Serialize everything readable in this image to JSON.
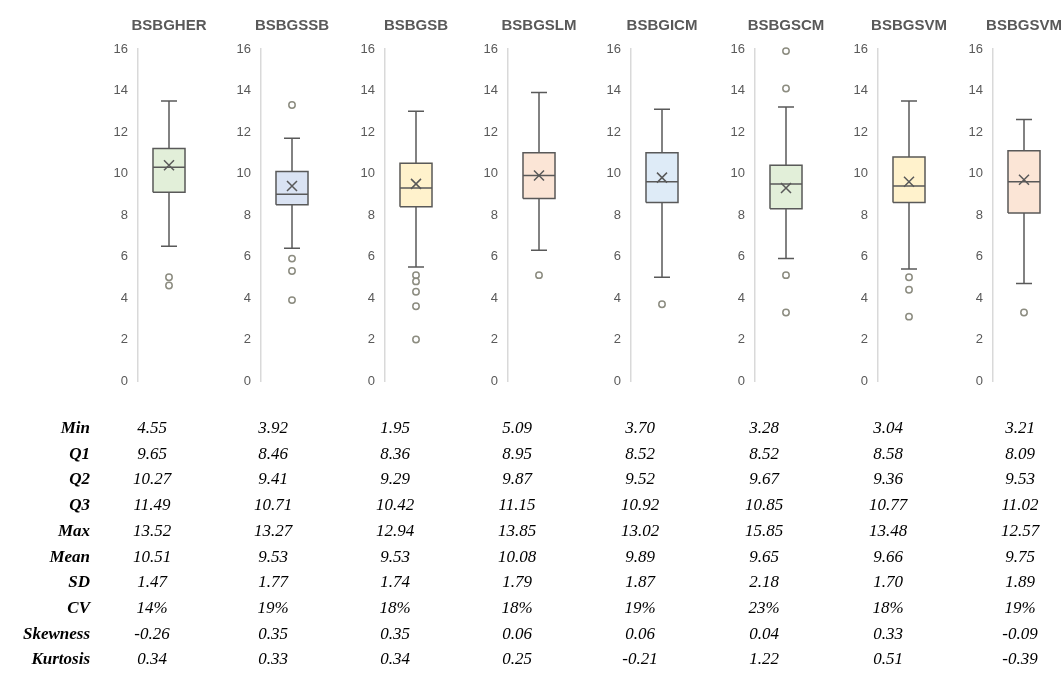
{
  "chart_data": [
    {
      "type": "box",
      "categories": [
        "BSBGHER"
      ],
      "ylim": [
        0,
        16
      ],
      "yticks": [
        0,
        2,
        4,
        6,
        8,
        10,
        12,
        14,
        16
      ],
      "grid": false,
      "series": [
        {
          "color": "#e2efd9",
          "boxes": [
            {
              "low": 6.5,
              "q1": 9.1,
              "median": 10.3,
              "q3": 11.2,
              "high": 13.5,
              "mean": 10.4,
              "outliers": [
                5.0,
                4.6
              ]
            }
          ]
        }
      ]
    },
    {
      "type": "box",
      "categories": [
        "BSBGSSB"
      ],
      "ylim": [
        0,
        16
      ],
      "yticks": [
        0,
        2,
        4,
        6,
        8,
        10,
        12,
        14,
        16
      ],
      "grid": false,
      "series": [
        {
          "color": "#dae3f3",
          "boxes": [
            {
              "low": 6.4,
              "q1": 8.5,
              "median": 9.0,
              "q3": 10.1,
              "high": 11.7,
              "mean": 9.4,
              "outliers": [
                13.3,
                5.9,
                5.3,
                3.9
              ]
            }
          ]
        }
      ]
    },
    {
      "type": "box",
      "categories": [
        "BSBGSB"
      ],
      "ylim": [
        0,
        16
      ],
      "yticks": [
        0,
        2,
        4,
        6,
        8,
        10,
        12,
        14,
        16
      ],
      "grid": false,
      "series": [
        {
          "color": "#fff2cc",
          "boxes": [
            {
              "low": 5.5,
              "q1": 8.4,
              "median": 9.3,
              "q3": 10.5,
              "high": 13.0,
              "mean": 9.5,
              "outliers": [
                5.1,
                4.8,
                4.3,
                3.6,
                2.0
              ]
            }
          ]
        }
      ]
    },
    {
      "type": "box",
      "categories": [
        "BSBGSLM"
      ],
      "ylim": [
        0,
        16
      ],
      "yticks": [
        0,
        2,
        4,
        6,
        8,
        10,
        12,
        14,
        16
      ],
      "grid": false,
      "series": [
        {
          "color": "#fbe5d6",
          "boxes": [
            {
              "low": 6.3,
              "q1": 8.8,
              "median": 9.9,
              "q3": 11.0,
              "high": 13.9,
              "mean": 9.9,
              "outliers": [
                5.1
              ]
            }
          ]
        }
      ]
    },
    {
      "type": "box",
      "categories": [
        "BSBGICM"
      ],
      "ylim": [
        0,
        16
      ],
      "yticks": [
        0,
        2,
        4,
        6,
        8,
        10,
        12,
        14,
        16
      ],
      "grid": false,
      "series": [
        {
          "color": "#deebf7",
          "boxes": [
            {
              "low": 5.0,
              "q1": 8.6,
              "median": 9.6,
              "q3": 11.0,
              "high": 13.1,
              "mean": 9.8,
              "outliers": [
                3.7
              ]
            }
          ]
        }
      ]
    },
    {
      "type": "box",
      "categories": [
        "BSBGSCM"
      ],
      "ylim": [
        0,
        16
      ],
      "yticks": [
        0,
        2,
        4,
        6,
        8,
        10,
        12,
        14,
        16
      ],
      "grid": false,
      "series": [
        {
          "color": "#e2efd9",
          "boxes": [
            {
              "low": 5.9,
              "q1": 8.3,
              "median": 9.5,
              "q3": 10.4,
              "high": 13.2,
              "mean": 9.3,
              "outliers": [
                15.9,
                14.1,
                5.1,
                3.3
              ]
            }
          ]
        }
      ]
    },
    {
      "type": "box",
      "categories": [
        "BSBGSVM"
      ],
      "ylim": [
        0,
        16
      ],
      "yticks": [
        0,
        2,
        4,
        6,
        8,
        10,
        12,
        14,
        16
      ],
      "grid": false,
      "series": [
        {
          "color": "#fff2cc",
          "boxes": [
            {
              "low": 5.4,
              "q1": 8.6,
              "median": 9.4,
              "q3": 10.8,
              "high": 13.5,
              "mean": 9.6,
              "outliers": [
                5.0,
                4.4,
                3.1
              ]
            }
          ]
        }
      ]
    },
    {
      "type": "box",
      "categories": [
        "BSBGSVM"
      ],
      "ylim": [
        0,
        16
      ],
      "yticks": [
        0,
        2,
        4,
        6,
        8,
        10,
        12,
        14,
        16
      ],
      "grid": false,
      "series": [
        {
          "color": "#fbe5d6",
          "boxes": [
            {
              "low": 4.7,
              "q1": 8.1,
              "median": 9.6,
              "q3": 11.1,
              "high": 12.6,
              "mean": 9.7,
              "outliers": [
                3.3
              ]
            }
          ]
        }
      ]
    },
    {
      "type": "other",
      "y_categories": [
        "Min",
        "Q1",
        "Q2",
        "Q3",
        "Max",
        "Mean",
        "SD",
        "CV",
        "Skewness",
        "Kurtosis"
      ],
      "cell_labels": [
        [
          "4.55",
          "3.92",
          "1.95",
          "5.09",
          "3.70",
          "3.28",
          "3.04",
          "3.21"
        ],
        [
          "9.65",
          "8.46",
          "8.36",
          "8.95",
          "8.52",
          "8.52",
          "8.58",
          "8.09"
        ],
        [
          "10.27",
          "9.41",
          "9.29",
          "9.87",
          "9.52",
          "9.67",
          "9.36",
          "9.53"
        ],
        [
          "11.49",
          "10.71",
          "10.42",
          "11.15",
          "10.92",
          "10.85",
          "10.77",
          "11.02"
        ],
        [
          "13.52",
          "13.27",
          "12.94",
          "13.85",
          "13.02",
          "15.85",
          "13.48",
          "12.57"
        ],
        [
          "10.51",
          "9.53",
          "9.53",
          "10.08",
          "9.89",
          "9.65",
          "9.66",
          "9.75"
        ],
        [
          "1.47",
          "1.77",
          "1.74",
          "1.79",
          "1.87",
          "2.18",
          "1.70",
          "1.89"
        ],
        [
          "14%",
          "19%",
          "18%",
          "18%",
          "19%",
          "23%",
          "18%",
          "19%"
        ],
        [
          "-0.26",
          "0.35",
          "0.35",
          "0.06",
          "0.06",
          "0.04",
          "0.33",
          "-0.09"
        ],
        [
          "0.34",
          "0.33",
          "0.34",
          "0.25",
          "-0.21",
          "1.22",
          "0.51",
          "-0.39"
        ]
      ]
    }
  ]
}
